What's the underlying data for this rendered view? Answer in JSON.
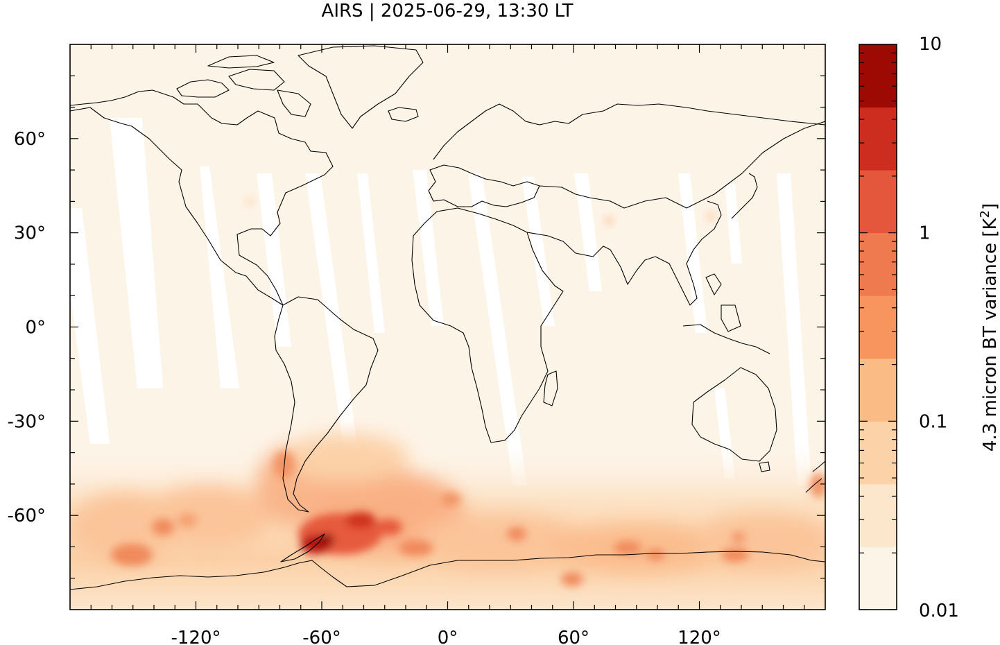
{
  "title": "AIRS | 2025-06-29, 13:30 LT",
  "chart_data": {
    "type": "heatmap",
    "projection": "equirectangular",
    "xlim": [
      -180,
      180
    ],
    "ylim": [
      -90,
      90
    ],
    "x_ticks": [
      {
        "value": -120,
        "label": "-120°"
      },
      {
        "value": -60,
        "label": "-60°"
      },
      {
        "value": 0,
        "label": "0°"
      },
      {
        "value": 60,
        "label": "60°"
      },
      {
        "value": 120,
        "label": "120°"
      }
    ],
    "y_ticks": [
      {
        "value": 60,
        "label": "60°"
      },
      {
        "value": 30,
        "label": "30°"
      },
      {
        "value": 0,
        "label": "0°"
      },
      {
        "value": -30,
        "label": "-30°"
      },
      {
        "value": -60,
        "label": "-60°"
      }
    ],
    "colorbar": {
      "label": "4.3 micron BT variance [K",
      "label_superscript": "2",
      "label_suffix": "]",
      "scale": "log",
      "range": [
        0.01,
        10
      ],
      "tick_labels": [
        {
          "value": 0.01,
          "label": "0.01"
        },
        {
          "value": 0.1,
          "label": "0.1"
        },
        {
          "value": 1,
          "label": "1"
        },
        {
          "value": 10,
          "label": "10"
        }
      ],
      "colors": [
        "#fdf4e8",
        "#fce6cc",
        "#fcd3a8",
        "#fbbb84",
        "#f8955f",
        "#f07a50",
        "#e5573d",
        "#cd2d1f",
        "#9d0a04"
      ]
    },
    "hotspots": [
      {
        "lon": -62,
        "lat": -65,
        "value": 8
      },
      {
        "lon": -55,
        "lat": -62,
        "value": 4
      },
      {
        "lon": -45,
        "lat": -58,
        "value": 2
      },
      {
        "lon": -70,
        "lat": -50,
        "value": 1
      },
      {
        "lon": -160,
        "lat": -68,
        "value": 1.2
      },
      {
        "lon": -135,
        "lat": -63,
        "value": 0.8
      },
      {
        "lon": 60,
        "lat": -73,
        "value": 1.5
      },
      {
        "lon": 90,
        "lat": -68,
        "value": 1.2
      },
      {
        "lon": 135,
        "lat": -64,
        "value": 1.0
      },
      {
        "lon": 175,
        "lat": -55,
        "value": 0.8
      }
    ]
  }
}
